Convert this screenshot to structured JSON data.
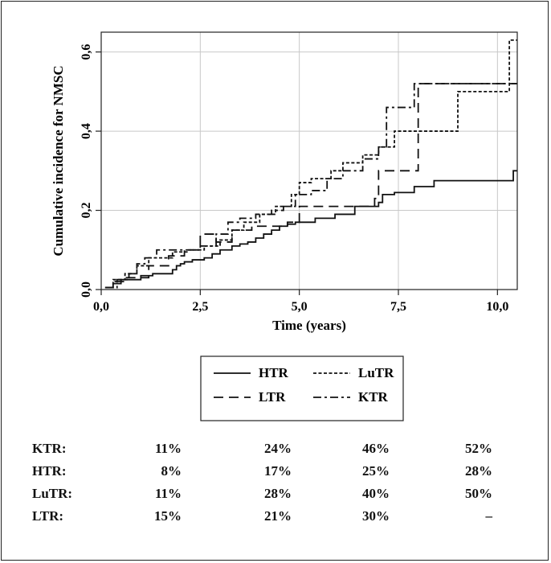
{
  "chart_data": {
    "type": "line",
    "title": "",
    "xlabel": "Time (years)",
    "ylabel": "Cumulative incidence for NMSC",
    "xlim": [
      0,
      10.5
    ],
    "ylim": [
      0,
      0.65
    ],
    "x_ticks": [
      0,
      2.5,
      5,
      7.5,
      10
    ],
    "x_tick_labels": [
      "0,0",
      "2,5",
      "5,0",
      "7,5",
      "10,0"
    ],
    "y_ticks": [
      0,
      0.2,
      0.4,
      0.6
    ],
    "y_tick_labels": [
      "0,0",
      "0,2",
      "0,4",
      "0,6"
    ],
    "grid": true,
    "step": true,
    "legend_position": "below",
    "series": [
      {
        "name": "HTR",
        "dash": "solid",
        "x": [
          0.1,
          0.3,
          0.5,
          1.0,
          1.3,
          1.8,
          1.9,
          2.0,
          2.1,
          2.3,
          2.6,
          2.8,
          3.0,
          3.3,
          3.5,
          3.7,
          3.9,
          4.1,
          4.3,
          4.5,
          4.7,
          4.9,
          5.4,
          5.9,
          6.4,
          7.0,
          7.1,
          7.4,
          7.9,
          8.4,
          10.4,
          10.5
        ],
        "y": [
          0.005,
          0.015,
          0.025,
          0.035,
          0.04,
          0.05,
          0.06,
          0.065,
          0.07,
          0.075,
          0.08,
          0.09,
          0.1,
          0.11,
          0.115,
          0.12,
          0.13,
          0.14,
          0.15,
          0.16,
          0.165,
          0.17,
          0.18,
          0.19,
          0.21,
          0.22,
          0.24,
          0.245,
          0.26,
          0.275,
          0.3,
          0.3
        ]
      },
      {
        "name": "LuTR",
        "dash": "dotted",
        "x": [
          0.1,
          0.3,
          0.6,
          0.9,
          1.2,
          1.8,
          2.2,
          2.6,
          3.0,
          3.3,
          3.6,
          4.0,
          4.4,
          4.8,
          5.0,
          5.3,
          5.8,
          6.1,
          6.6,
          7.0,
          7.4,
          8.0,
          9.0,
          10.3,
          10.5
        ],
        "y": [
          0.005,
          0.025,
          0.04,
          0.06,
          0.08,
          0.095,
          0.1,
          0.11,
          0.125,
          0.15,
          0.17,
          0.19,
          0.21,
          0.24,
          0.27,
          0.28,
          0.3,
          0.32,
          0.34,
          0.36,
          0.4,
          0.4,
          0.5,
          0.63,
          0.63
        ]
      },
      {
        "name": "LTR",
        "dash": "dashed",
        "x": [
          0.1,
          0.3,
          0.6,
          1.2,
          1.7,
          2.1,
          2.5,
          2.9,
          3.3,
          3.8,
          4.7,
          5.0,
          6.4,
          6.9,
          7.0,
          7.5,
          8.0,
          10.5
        ],
        "y": [
          0.005,
          0.02,
          0.03,
          0.06,
          0.085,
          0.1,
          0.14,
          0.12,
          0.15,
          0.16,
          0.17,
          0.21,
          0.21,
          0.23,
          0.3,
          0.3,
          0.52,
          0.52
        ]
      },
      {
        "name": "KTR",
        "dash": "dashdot",
        "x": [
          0.1,
          0.4,
          0.7,
          0.9,
          1.1,
          1.4,
          2.5,
          2.9,
          3.2,
          3.5,
          3.9,
          4.3,
          4.6,
          4.9,
          5.3,
          5.7,
          6.1,
          6.6,
          7.0,
          7.2,
          7.6,
          7.9,
          8.5,
          10.5
        ],
        "y": [
          0.005,
          0.025,
          0.04,
          0.065,
          0.08,
          0.1,
          0.11,
          0.14,
          0.17,
          0.18,
          0.19,
          0.2,
          0.21,
          0.24,
          0.25,
          0.28,
          0.3,
          0.33,
          0.36,
          0.46,
          0.46,
          0.52,
          0.52,
          0.52
        ]
      }
    ],
    "legend": [
      {
        "name": "HTR",
        "dash": "solid"
      },
      {
        "name": "LuTR",
        "dash": "dotted"
      },
      {
        "name": "LTR",
        "dash": "dashed"
      },
      {
        "name": "KTR",
        "dash": "dashdot"
      }
    ]
  },
  "stats_table": [
    {
      "name": "KTR:",
      "values": [
        "11%",
        "24%",
        "46%",
        "52%"
      ]
    },
    {
      "name": "HTR:",
      "values": [
        "8%",
        "17%",
        "25%",
        "28%"
      ]
    },
    {
      "name": "LuTR:",
      "values": [
        "11%",
        "28%",
        "40%",
        "50%"
      ]
    },
    {
      "name": "LTR:",
      "values": [
        "15%",
        "21%",
        "30%",
        "–"
      ]
    }
  ]
}
